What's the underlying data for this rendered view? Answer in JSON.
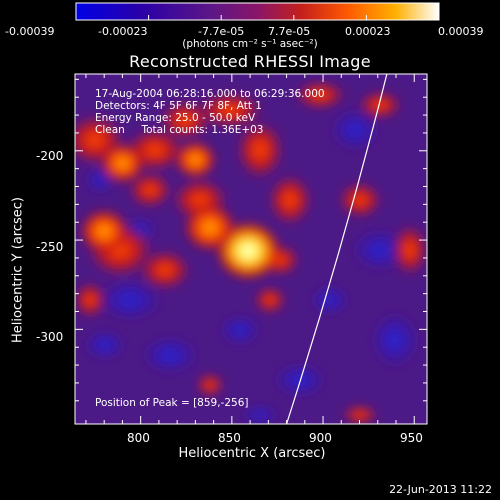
{
  "colorbar": {
    "ticks": [
      "-0.00039",
      "-0.00023",
      "-7.7e-05",
      "7.7e-05",
      "0.00023",
      "0.00039"
    ],
    "unit": "(photons cm⁻² s⁻¹ asec⁻²)",
    "colors": [
      "#0000e0",
      "#2a00b0",
      "#5a1890",
      "#8a1a70",
      "#c8201c",
      "#ff6a00",
      "#ffb000",
      "#ffffff"
    ]
  },
  "annotation": {
    "lines": [
      "17-Aug-2004 06:28:16.000 to 06:29:36.000",
      "Detectors: 4F 5F 6F 7F 8F, Att 1",
      "Energy Range: 25.0 - 50.0 keV",
      "Clean     Total counts: 1.36E+03"
    ],
    "peak": "Position of Peak = [859,-256]"
  },
  "footer": {
    "timestamp": "22-Jun-2013 11:22"
  },
  "chart_data": {
    "type": "heatmap",
    "title": "Reconstructed RHESSI Image",
    "xlabel": "Heliocentric X (arcsec)",
    "ylabel": "Heliocentric Y (arcsec)",
    "xlim": [
      764,
      957
    ],
    "ylim": [
      -353,
      -157
    ],
    "xticks": [
      "800",
      "850",
      "900",
      "950"
    ],
    "yticks": [
      "-200",
      "-250",
      "-300"
    ],
    "xtick_values": [
      800,
      850,
      900,
      950
    ],
    "ytick_values": [
      -200,
      -250,
      -300
    ],
    "value_range": [
      -0.00039,
      0.00039
    ],
    "peak_position": [
      859,
      -256
    ],
    "bright_sources": [
      {
        "x": 859,
        "y": -256,
        "level": 1.0
      },
      {
        "x": 838,
        "y": -243,
        "level": 0.65
      },
      {
        "x": 780,
        "y": -245,
        "level": 0.55
      },
      {
        "x": 790,
        "y": -207,
        "level": 0.45
      },
      {
        "x": 830,
        "y": -205,
        "level": 0.35
      }
    ],
    "limb_line": [
      [
        880,
        -353
      ],
      [
        935,
        -157
      ]
    ]
  }
}
